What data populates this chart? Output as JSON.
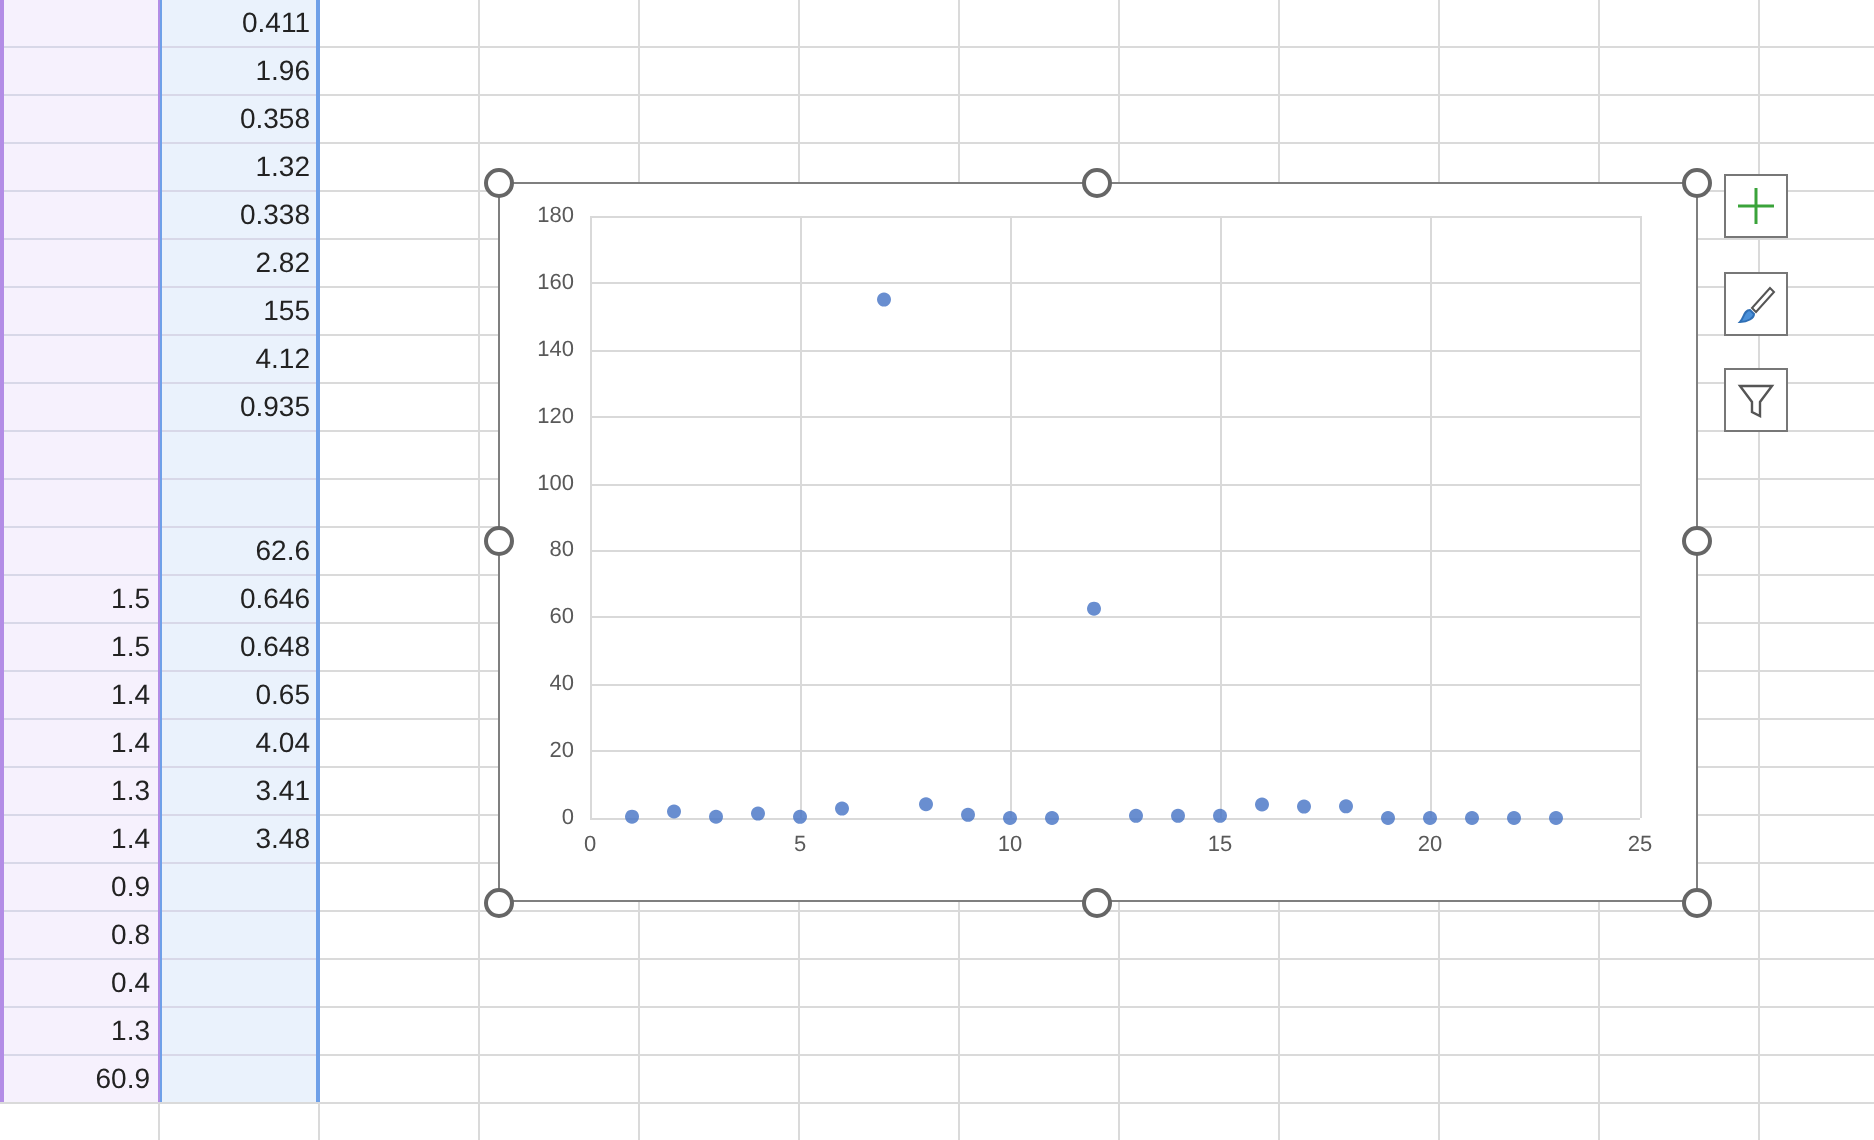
{
  "chart_data": {
    "type": "scatter",
    "x": [
      1,
      2,
      3,
      4,
      5,
      6,
      7,
      8,
      9,
      10,
      11,
      12,
      13,
      14,
      15,
      16,
      17,
      18,
      19,
      20,
      21,
      22,
      23
    ],
    "values": [
      0.411,
      1.96,
      0.358,
      1.32,
      0.338,
      2.82,
      155,
      4.12,
      0.935,
      0,
      0,
      62.6,
      0.646,
      0.648,
      0.65,
      4.04,
      3.41,
      3.48,
      0,
      0,
      0,
      0,
      0
    ],
    "color": "#4472c4",
    "marker": "circle",
    "xlim": [
      0,
      25
    ],
    "xticks": [
      0,
      5,
      10,
      15,
      20,
      25
    ],
    "ylim": [
      0,
      180
    ],
    "yticks": [
      0,
      20,
      40,
      60,
      80,
      100,
      120,
      140,
      160,
      180
    ],
    "grid": true,
    "annotations": [
      "0.411",
      "1.96",
      "0.358",
      "1.32",
      "0.338",
      "2.82",
      "155",
      "4.12",
      "0.935",
      "62.6",
      "0.646",
      "0.648",
      "0.65",
      "4.04",
      "3.41",
      "3.48",
      "1.5",
      "1.5",
      "1.4",
      "1.4",
      "1.3",
      "1.4",
      "0.9",
      "0.8",
      "0.4",
      "1.3",
      "60.9"
    ]
  }
}
